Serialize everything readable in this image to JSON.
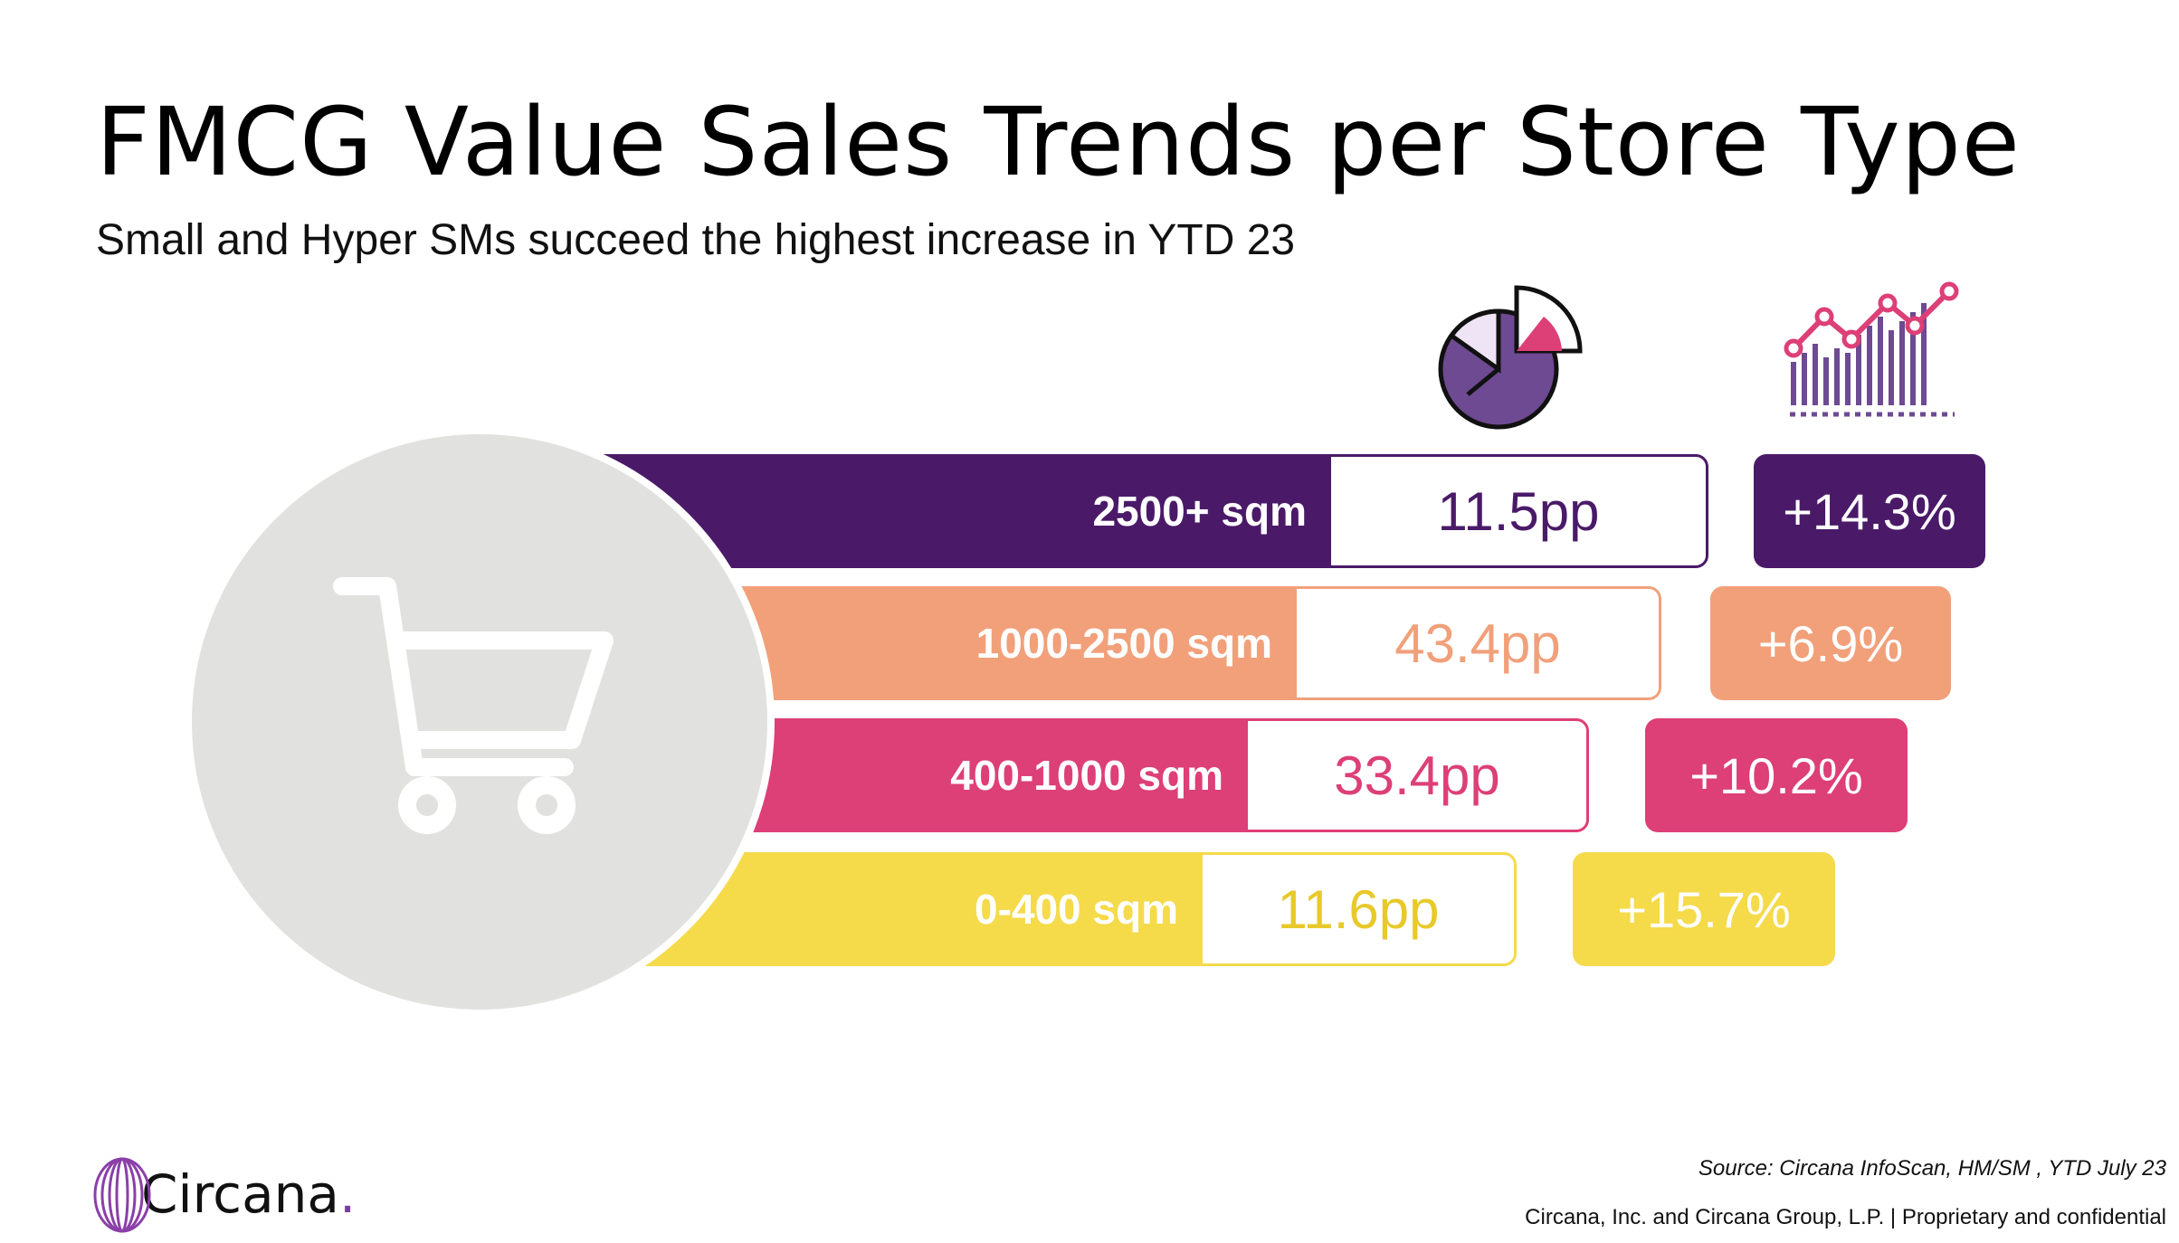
{
  "title": "FMCG Value Sales Trends per Store Type",
  "subtitle": "Small and Hyper SMs succeed the highest increase in YTD 23",
  "icons": {
    "cart": "shopping-cart-icon",
    "share": "pie-chart-icon",
    "trend": "trend-chart-icon"
  },
  "chart_data": {
    "type": "bar",
    "categories": [
      "2500+ sqm",
      "1000-2500 sqm",
      "400-1000 sqm",
      "0-400 sqm"
    ],
    "series": [
      {
        "values": [
          11.5,
          43.4,
          33.4,
          11.6
        ],
        "labels": [
          "11.5pp",
          "43.4pp",
          "33.4pp",
          "11.6pp"
        ]
      },
      {
        "values": [
          14.3,
          6.9,
          10.2,
          15.7
        ],
        "labels": [
          "+14.3%",
          "+6.9%",
          "+10.2%",
          "+15.7%"
        ]
      }
    ],
    "colors": [
      "#4a1a68",
      "#f1a07a",
      "#dd3f77",
      "#f5da4a"
    ]
  },
  "source": "Source: Circana InfoScan, HM/SM , YTD July 23",
  "footer": "Circana, Inc. and Circana Group, L.P. |  Proprietary and confidential",
  "brand": {
    "name": "Circana",
    "dot": "."
  }
}
